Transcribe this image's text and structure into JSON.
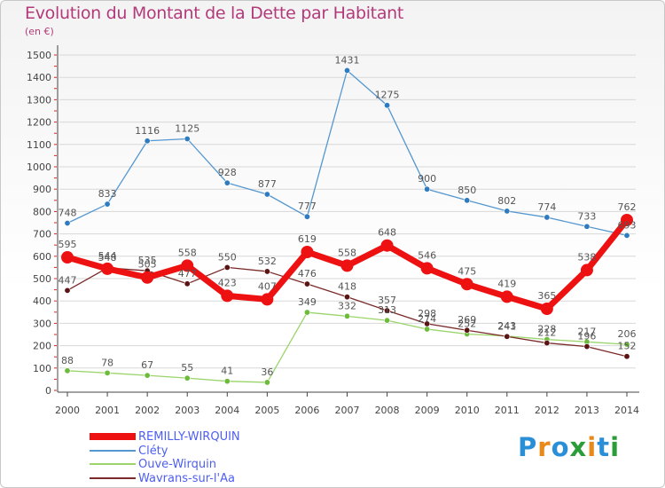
{
  "title": "Evolution du Montant de la Dette par Habitant",
  "unit_label": "(en €)",
  "logo_text": "Proxiti",
  "logo_letter_colors": [
    "#2b8fd8",
    "#e8891a",
    "#2b8fd8",
    "#2a9d3a",
    "#e8891a",
    "#2b8fd8",
    "#2a9d3a"
  ],
  "colors": {
    "title": "#b33a7a",
    "legend_text": "#4d5ef2",
    "axis": "#444444",
    "grid": "#d8d8d8",
    "tick_marks": "#dd2222",
    "value_labels": "#555555"
  },
  "chart_data": {
    "type": "line",
    "title": "Evolution du Montant de la Dette par Habitant",
    "ylabel": "(en €)",
    "xlabel": "",
    "x": [
      2000,
      2001,
      2002,
      2003,
      2004,
      2005,
      2006,
      2007,
      2008,
      2009,
      2010,
      2011,
      2012,
      2013,
      2014
    ],
    "ylim": [
      0,
      1500
    ],
    "yticks": [
      0,
      100,
      200,
      300,
      400,
      500,
      600,
      700,
      800,
      900,
      1000,
      1100,
      1200,
      1300,
      1400,
      1500
    ],
    "grid": "horizontal",
    "legend_position": "bottom-left",
    "series": [
      {
        "name": "Cléty",
        "color": "#5597cf",
        "marker": "#2f7bc0",
        "values": [
          748,
          833,
          1116,
          1125,
          928,
          877,
          777,
          1431,
          1275,
          900,
          850,
          802,
          774,
          733,
          693
        ],
        "labels": [
          "748",
          "833",
          "1116",
          "1125",
          "928",
          "877",
          "777",
          "1431",
          "1275",
          "900",
          "850",
          "802",
          "774",
          "733",
          "693"
        ]
      },
      {
        "name": "Ouve-Wirquin",
        "color": "#9ad46a",
        "marker": "#6dbb3a",
        "values": [
          88,
          78,
          67,
          55,
          41,
          36,
          349,
          332,
          313,
          274,
          252,
          243,
          228,
          217,
          206
        ],
        "labels": [
          "88",
          "78",
          "67",
          "55",
          "41",
          "36",
          "349",
          "332",
          "313",
          "274",
          "252",
          "243",
          "228",
          "217",
          "206"
        ]
      },
      {
        "name": "Wavrans-sur-l'Aa",
        "color": "#7a2a2a",
        "marker": "#5a1414",
        "values": [
          447,
          548,
          535,
          477,
          550,
          532,
          476,
          418,
          357,
          298,
          269,
          241,
          212,
          196,
          152
        ],
        "labels": [
          "447",
          "548",
          "535",
          "477",
          "550",
          "532",
          "476",
          "418",
          "357",
          "298",
          "269",
          "241",
          "212",
          "196",
          "152"
        ]
      },
      {
        "name": "REMILLY-WIRQUIN",
        "color": "#ee1111",
        "marker": "#ee1111",
        "highlight": true,
        "values": [
          595,
          544,
          505,
          558,
          423,
          407,
          619,
          558,
          648,
          546,
          475,
          419,
          365,
          538,
          762
        ],
        "labels": [
          "595",
          "544",
          "505",
          "558",
          "423",
          "407",
          "619",
          "558",
          "648",
          "546",
          "475",
          "419",
          "365",
          "538",
          "762"
        ]
      }
    ],
    "legend": [
      "REMILLY-WIRQUIN",
      "Cléty",
      "Ouve-Wirquin",
      "Wavrans-sur-l'Aa"
    ]
  }
}
